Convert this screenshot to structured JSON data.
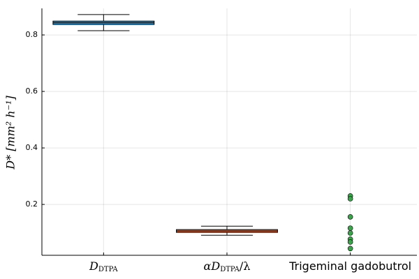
{
  "chart_data": {
    "type": "box",
    "ylabel": "D* [mm² h⁻¹]",
    "categories": [
      [
        "D",
        "DTPA"
      ],
      [
        "αD",
        "DTPA",
        "/λ"
      ],
      [
        "Trigeminal gadobutrol"
      ]
    ],
    "boxes": [
      {
        "color": "#009af9",
        "whisker_low": 0.815,
        "q1": 0.837,
        "median": 0.843,
        "q3": 0.849,
        "whisker_high": 0.872
      },
      {
        "color": "#e26f46",
        "whisker_low": 0.091,
        "q1": 0.101,
        "median": 0.106,
        "q3": 0.111,
        "whisker_high": 0.123
      }
    ],
    "points": {
      "color": "#3da44d",
      "values": [
        0.23,
        0.22,
        0.156,
        0.116,
        0.099,
        0.077,
        0.067,
        0.044
      ]
    },
    "ylim": [
      0.02,
      0.894
    ],
    "yticks": [
      0.2,
      0.4,
      0.6,
      0.8
    ],
    "grid": true
  }
}
